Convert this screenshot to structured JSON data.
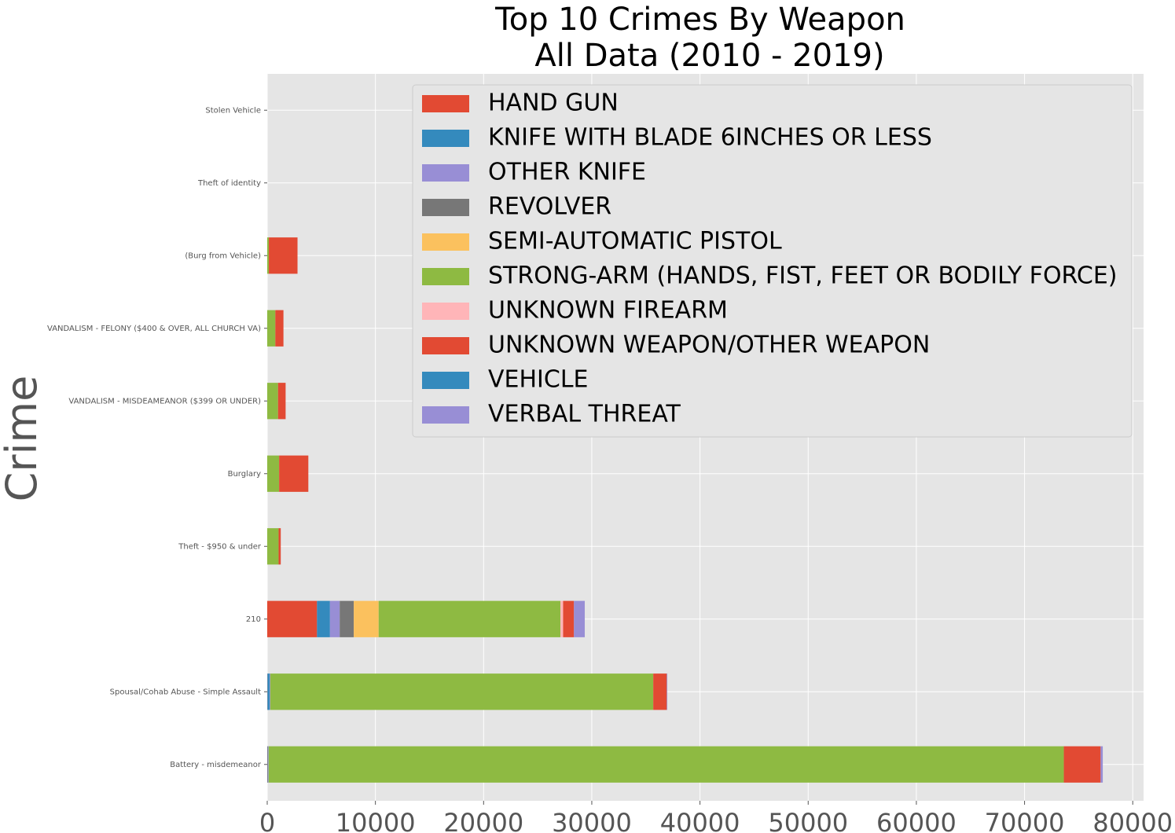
{
  "chart_data": {
    "type": "bar",
    "orientation": "horizontal",
    "stacked": true,
    "title": "Top 10 Crimes By Weapon",
    "subtitle": "All Data (2010 - 2019)",
    "xlabel": "",
    "ylabel": "Crime",
    "xlim": [
      0,
      81000
    ],
    "xticks": [
      0,
      10000,
      20000,
      30000,
      40000,
      50000,
      60000,
      70000,
      80000
    ],
    "grid": true,
    "legend_position": "top-right",
    "categories": [
      "Battery - misdemeanor",
      "Spousal/Cohab Abuse - Simple Assault",
      "210",
      "Theft - $950 & under",
      "Burglary",
      "VANDALISM - MISDEAMEANOR ($399 OR UNDER)",
      "VANDALISM - FELONY ($400 & OVER, ALL CHURCH VA)",
      "(Burg from Vehicle)",
      "Theft of identity",
      "Stolen Vehicle"
    ],
    "series": [
      {
        "name": "HAND GUN",
        "color": "#E24A33",
        "values": [
          30,
          20,
          4600,
          0,
          0,
          0,
          0,
          0,
          0,
          0
        ]
      },
      {
        "name": "KNIFE WITH BLADE 6INCHES OR LESS",
        "color": "#348ABD",
        "values": [
          60,
          200,
          1200,
          0,
          0,
          0,
          0,
          0,
          0,
          0
        ]
      },
      {
        "name": "OTHER KNIFE",
        "color": "#988ED5",
        "values": [
          40,
          60,
          900,
          0,
          0,
          0,
          0,
          0,
          0,
          0
        ]
      },
      {
        "name": "REVOLVER",
        "color": "#777777",
        "values": [
          0,
          0,
          1300,
          0,
          0,
          0,
          0,
          0,
          0,
          0
        ]
      },
      {
        "name": "SEMI-AUTOMATIC PISTOL",
        "color": "#FBC15E",
        "values": [
          0,
          0,
          2300,
          0,
          0,
          0,
          0,
          0,
          0,
          0
        ]
      },
      {
        "name": "STRONG-ARM (HANDS, FIST, FEET OR BODILY FORCE)",
        "color": "#8EBA42",
        "values": [
          73500,
          35400,
          16800,
          1050,
          1100,
          1000,
          750,
          150,
          0,
          0
        ]
      },
      {
        "name": "UNKNOWN FIREARM",
        "color": "#FFB5B8",
        "values": [
          0,
          0,
          250,
          0,
          0,
          0,
          0,
          0,
          0,
          0
        ]
      },
      {
        "name": "UNKNOWN WEAPON/OTHER WEAPON",
        "color": "#E24A33",
        "values": [
          3400,
          1250,
          1000,
          200,
          2700,
          700,
          750,
          2650,
          0,
          0
        ]
      },
      {
        "name": "VEHICLE",
        "color": "#348ABD",
        "values": [
          0,
          0,
          0,
          0,
          0,
          0,
          0,
          0,
          0,
          0
        ]
      },
      {
        "name": "VERBAL THREAT",
        "color": "#988ED5",
        "values": [
          200,
          50,
          1000,
          0,
          0,
          0,
          0,
          0,
          0,
          0
        ]
      }
    ]
  }
}
